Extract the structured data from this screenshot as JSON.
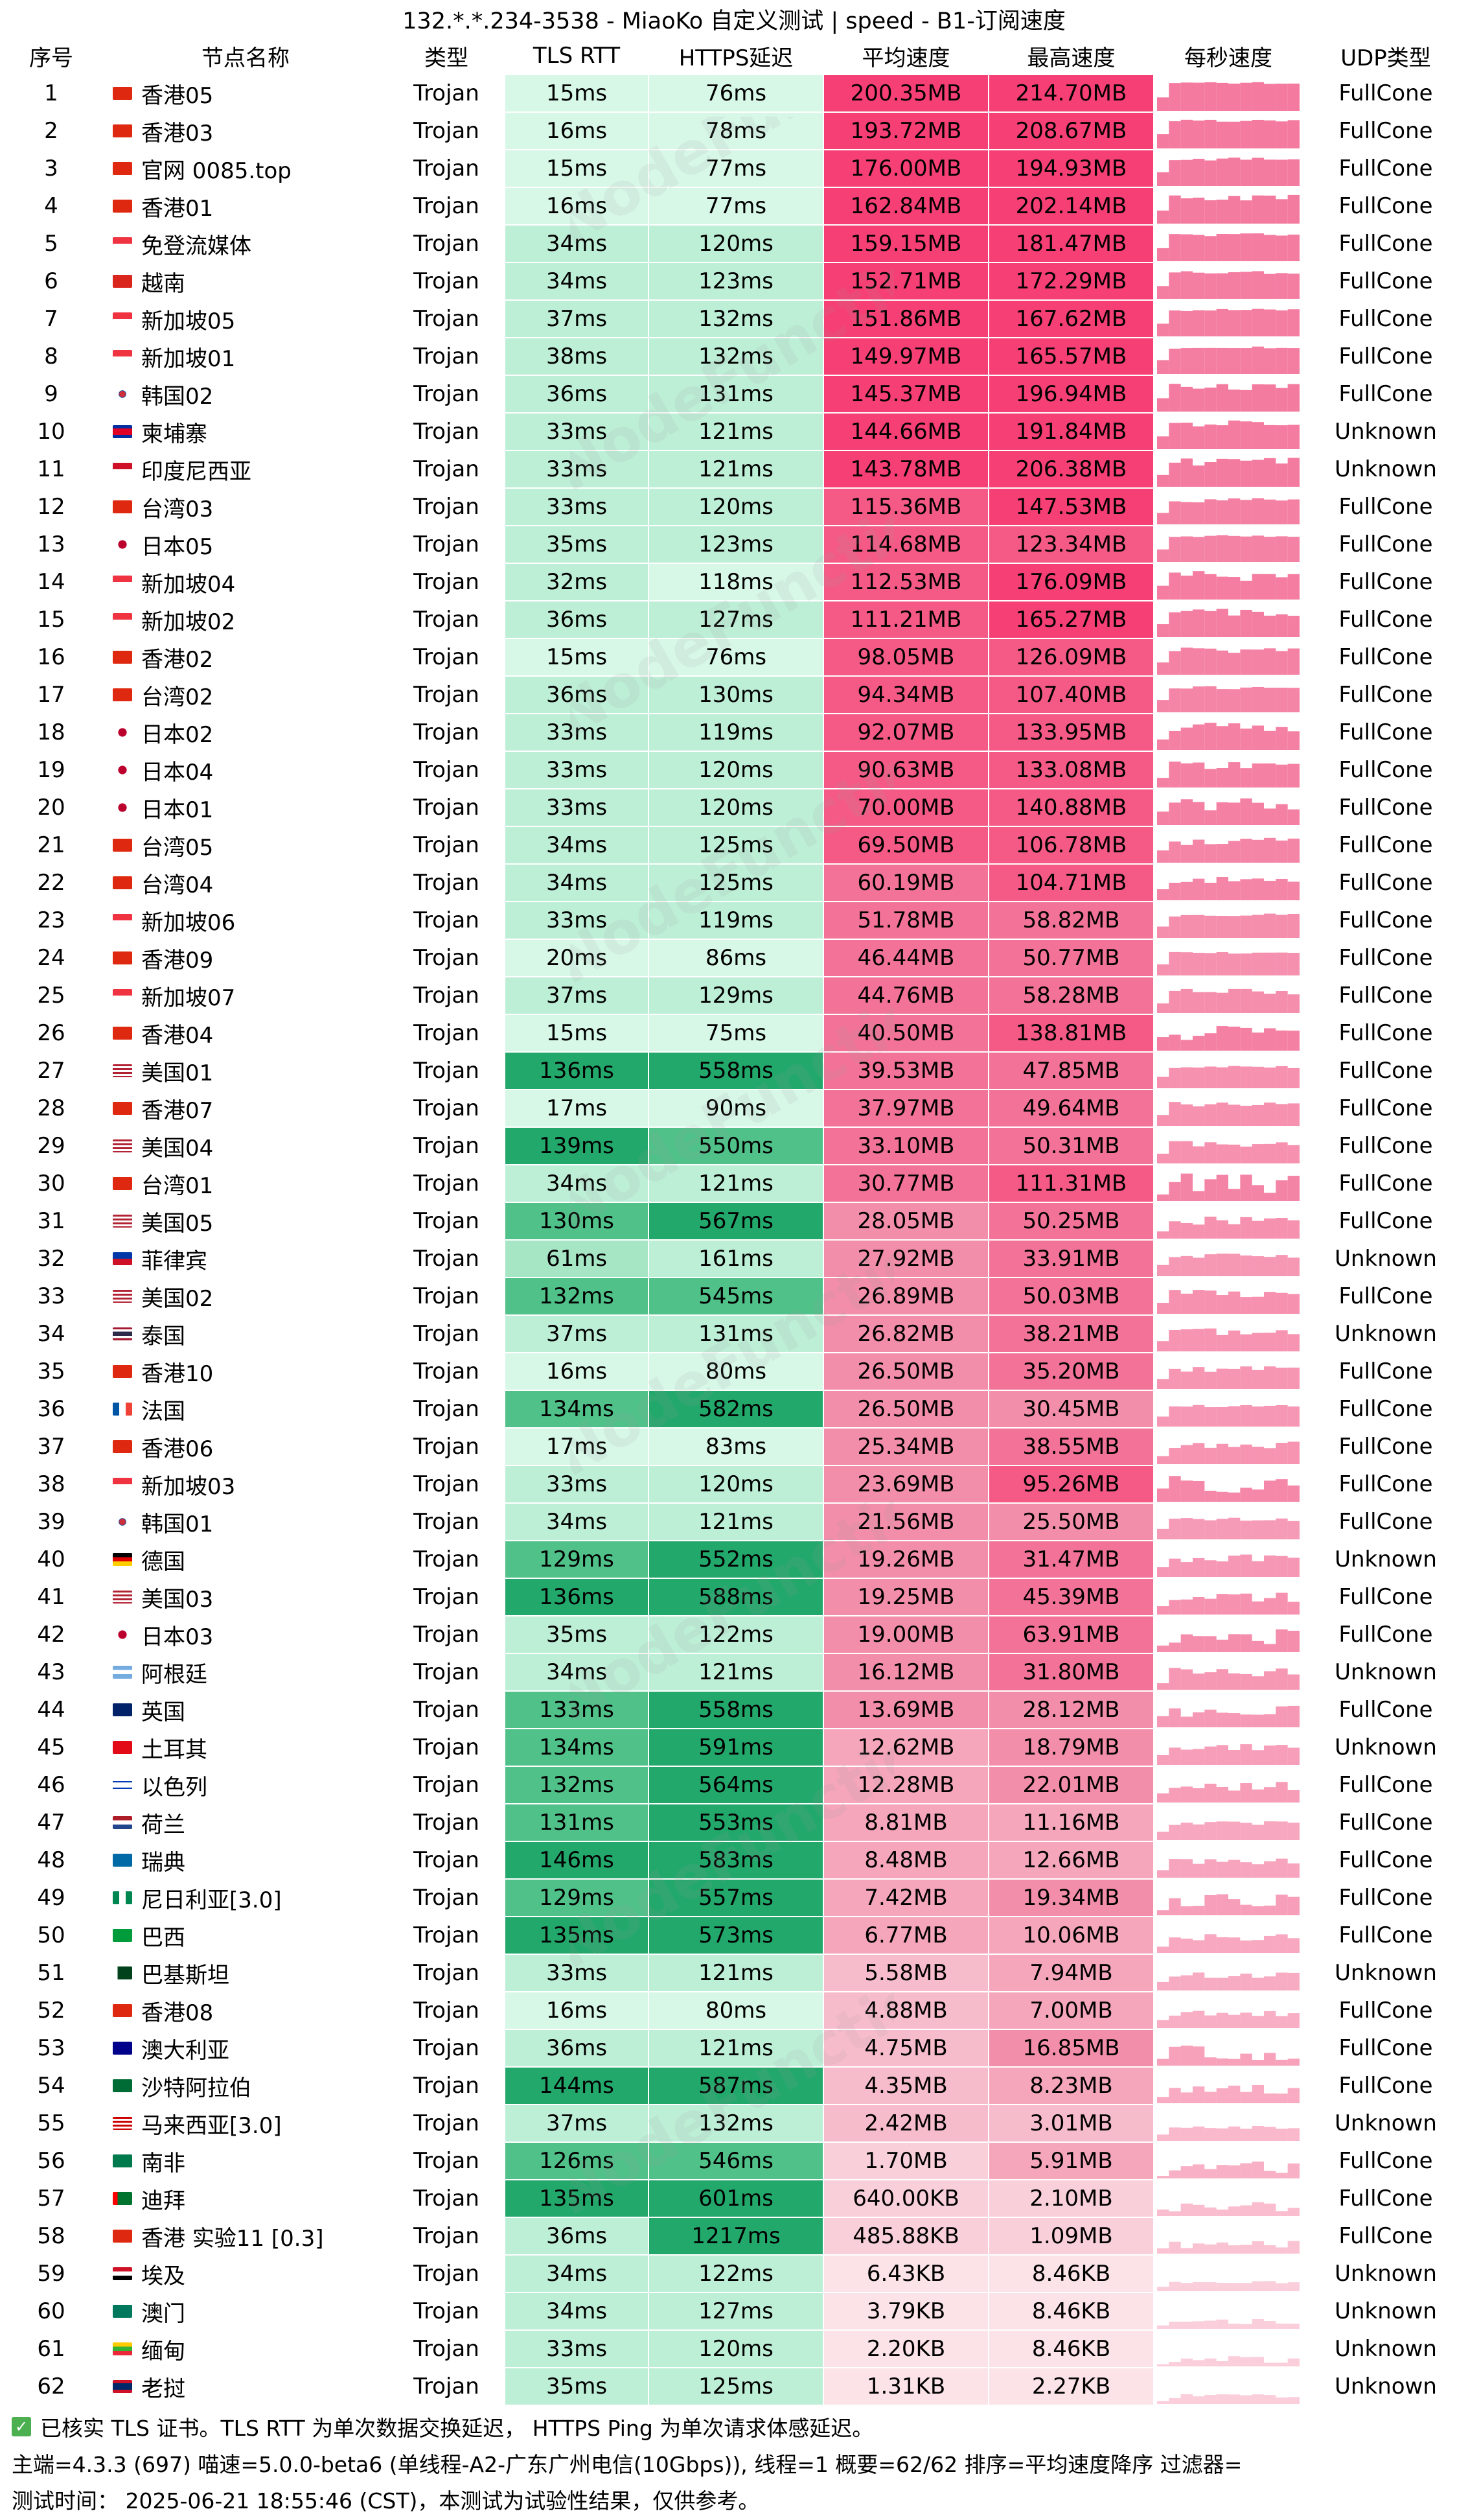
{
  "title": "132.*.*.234-3538 - MiaoKo 自定义测试 | speed - B1-订阅速度",
  "headers": [
    "序号",
    "节点名称",
    "类型",
    "TLS RTT",
    "HTTPS延迟",
    "平均速度",
    "最高速度",
    "每秒速度",
    "UDP类型"
  ],
  "colors": {
    "tls_scale": [
      "#d7f7e7",
      "#bdeed6",
      "#a6e6c5",
      "#8fddb4",
      "#6fd09c",
      "#4fc189",
      "#23a86c"
    ],
    "speed_scale": [
      "#fbe3e8",
      "#f9d0da",
      "#f7bccb",
      "#f5a6bb",
      "#f38eaa",
      "#f27397",
      "#f45a85",
      "#f63f74"
    ],
    "spark": "#f3739a"
  },
  "rows": [
    {
      "idx": "1",
      "name": "香港05",
      "flag": "hk",
      "type": "Trojan",
      "tls": "15ms",
      "https": "76ms",
      "avg": "200.35MB",
      "max": "214.70MB",
      "udp": "FullCone"
    },
    {
      "idx": "2",
      "name": "香港03",
      "flag": "hk",
      "type": "Trojan",
      "tls": "16ms",
      "https": "78ms",
      "avg": "193.72MB",
      "max": "208.67MB",
      "udp": "FullCone"
    },
    {
      "idx": "3",
      "name": "官网 0085.top",
      "flag": "hk",
      "type": "Trojan",
      "tls": "15ms",
      "https": "77ms",
      "avg": "176.00MB",
      "max": "194.93MB",
      "udp": "FullCone"
    },
    {
      "idx": "4",
      "name": "香港01",
      "flag": "hk",
      "type": "Trojan",
      "tls": "16ms",
      "https": "77ms",
      "avg": "162.84MB",
      "max": "202.14MB",
      "udp": "FullCone"
    },
    {
      "idx": "5",
      "name": "免登流媒体",
      "flag": "sg",
      "type": "Trojan",
      "tls": "34ms",
      "https": "120ms",
      "avg": "159.15MB",
      "max": "181.47MB",
      "udp": "FullCone"
    },
    {
      "idx": "6",
      "name": "越南",
      "flag": "vn",
      "type": "Trojan",
      "tls": "34ms",
      "https": "123ms",
      "avg": "152.71MB",
      "max": "172.29MB",
      "udp": "FullCone"
    },
    {
      "idx": "7",
      "name": "新加坡05",
      "flag": "sg",
      "type": "Trojan",
      "tls": "37ms",
      "https": "132ms",
      "avg": "151.86MB",
      "max": "167.62MB",
      "udp": "FullCone"
    },
    {
      "idx": "8",
      "name": "新加坡01",
      "flag": "sg",
      "type": "Trojan",
      "tls": "38ms",
      "https": "132ms",
      "avg": "149.97MB",
      "max": "165.57MB",
      "udp": "FullCone"
    },
    {
      "idx": "9",
      "name": "韩国02",
      "flag": "kr",
      "type": "Trojan",
      "tls": "36ms",
      "https": "131ms",
      "avg": "145.37MB",
      "max": "196.94MB",
      "udp": "FullCone"
    },
    {
      "idx": "10",
      "name": "柬埔寨",
      "flag": "kh",
      "type": "Trojan",
      "tls": "33ms",
      "https": "121ms",
      "avg": "144.66MB",
      "max": "191.84MB",
      "udp": "Unknown"
    },
    {
      "idx": "11",
      "name": "印度尼西亚",
      "flag": "id",
      "type": "Trojan",
      "tls": "33ms",
      "https": "121ms",
      "avg": "143.78MB",
      "max": "206.38MB",
      "udp": "Unknown"
    },
    {
      "idx": "12",
      "name": "台湾03",
      "flag": "tw",
      "type": "Trojan",
      "tls": "33ms",
      "https": "120ms",
      "avg": "115.36MB",
      "max": "147.53MB",
      "udp": "FullCone"
    },
    {
      "idx": "13",
      "name": "日本05",
      "flag": "jp",
      "type": "Trojan",
      "tls": "35ms",
      "https": "123ms",
      "avg": "114.68MB",
      "max": "123.34MB",
      "udp": "FullCone"
    },
    {
      "idx": "14",
      "name": "新加坡04",
      "flag": "sg",
      "type": "Trojan",
      "tls": "32ms",
      "https": "118ms",
      "avg": "112.53MB",
      "max": "176.09MB",
      "udp": "FullCone"
    },
    {
      "idx": "15",
      "name": "新加坡02",
      "flag": "sg",
      "type": "Trojan",
      "tls": "36ms",
      "https": "127ms",
      "avg": "111.21MB",
      "max": "165.27MB",
      "udp": "FullCone"
    },
    {
      "idx": "16",
      "name": "香港02",
      "flag": "hk",
      "type": "Trojan",
      "tls": "15ms",
      "https": "76ms",
      "avg": "98.05MB",
      "max": "126.09MB",
      "udp": "FullCone"
    },
    {
      "idx": "17",
      "name": "台湾02",
      "flag": "tw",
      "type": "Trojan",
      "tls": "36ms",
      "https": "130ms",
      "avg": "94.34MB",
      "max": "107.40MB",
      "udp": "FullCone"
    },
    {
      "idx": "18",
      "name": "日本02",
      "flag": "jp",
      "type": "Trojan",
      "tls": "33ms",
      "https": "119ms",
      "avg": "92.07MB",
      "max": "133.95MB",
      "udp": "FullCone"
    },
    {
      "idx": "19",
      "name": "日本04",
      "flag": "jp",
      "type": "Trojan",
      "tls": "33ms",
      "https": "120ms",
      "avg": "90.63MB",
      "max": "133.08MB",
      "udp": "FullCone"
    },
    {
      "idx": "20",
      "name": "日本01",
      "flag": "jp",
      "type": "Trojan",
      "tls": "33ms",
      "https": "120ms",
      "avg": "70.00MB",
      "max": "140.88MB",
      "udp": "FullCone"
    },
    {
      "idx": "21",
      "name": "台湾05",
      "flag": "tw",
      "type": "Trojan",
      "tls": "34ms",
      "https": "125ms",
      "avg": "69.50MB",
      "max": "106.78MB",
      "udp": "FullCone"
    },
    {
      "idx": "22",
      "name": "台湾04",
      "flag": "tw",
      "type": "Trojan",
      "tls": "34ms",
      "https": "125ms",
      "avg": "60.19MB",
      "max": "104.71MB",
      "udp": "FullCone"
    },
    {
      "idx": "23",
      "name": "新加坡06",
      "flag": "sg",
      "type": "Trojan",
      "tls": "33ms",
      "https": "119ms",
      "avg": "51.78MB",
      "max": "58.82MB",
      "udp": "FullCone"
    },
    {
      "idx": "24",
      "name": "香港09",
      "flag": "hk",
      "type": "Trojan",
      "tls": "20ms",
      "https": "86ms",
      "avg": "46.44MB",
      "max": "50.77MB",
      "udp": "FullCone"
    },
    {
      "idx": "25",
      "name": "新加坡07",
      "flag": "sg",
      "type": "Trojan",
      "tls": "37ms",
      "https": "129ms",
      "avg": "44.76MB",
      "max": "58.28MB",
      "udp": "FullCone"
    },
    {
      "idx": "26",
      "name": "香港04",
      "flag": "hk",
      "type": "Trojan",
      "tls": "15ms",
      "https": "75ms",
      "avg": "40.50MB",
      "max": "138.81MB",
      "udp": "FullCone"
    },
    {
      "idx": "27",
      "name": "美国01",
      "flag": "us",
      "type": "Trojan",
      "tls": "136ms",
      "https": "558ms",
      "avg": "39.53MB",
      "max": "47.85MB",
      "udp": "FullCone"
    },
    {
      "idx": "28",
      "name": "香港07",
      "flag": "hk",
      "type": "Trojan",
      "tls": "17ms",
      "https": "90ms",
      "avg": "37.97MB",
      "max": "49.64MB",
      "udp": "FullCone"
    },
    {
      "idx": "29",
      "name": "美国04",
      "flag": "us",
      "type": "Trojan",
      "tls": "139ms",
      "https": "550ms",
      "avg": "33.10MB",
      "max": "50.31MB",
      "udp": "FullCone"
    },
    {
      "idx": "30",
      "name": "台湾01",
      "flag": "tw",
      "type": "Trojan",
      "tls": "34ms",
      "https": "121ms",
      "avg": "30.77MB",
      "max": "111.31MB",
      "udp": "FullCone"
    },
    {
      "idx": "31",
      "name": "美国05",
      "flag": "us",
      "type": "Trojan",
      "tls": "130ms",
      "https": "567ms",
      "avg": "28.05MB",
      "max": "50.25MB",
      "udp": "FullCone"
    },
    {
      "idx": "32",
      "name": "菲律宾",
      "flag": "ph",
      "type": "Trojan",
      "tls": "61ms",
      "https": "161ms",
      "avg": "27.92MB",
      "max": "33.91MB",
      "udp": "Unknown"
    },
    {
      "idx": "33",
      "name": "美国02",
      "flag": "us",
      "type": "Trojan",
      "tls": "132ms",
      "https": "545ms",
      "avg": "26.89MB",
      "max": "50.03MB",
      "udp": "FullCone"
    },
    {
      "idx": "34",
      "name": "泰国",
      "flag": "th",
      "type": "Trojan",
      "tls": "37ms",
      "https": "131ms",
      "avg": "26.82MB",
      "max": "38.21MB",
      "udp": "Unknown"
    },
    {
      "idx": "35",
      "name": "香港10",
      "flag": "hk",
      "type": "Trojan",
      "tls": "16ms",
      "https": "80ms",
      "avg": "26.50MB",
      "max": "35.20MB",
      "udp": "FullCone"
    },
    {
      "idx": "36",
      "name": "法国",
      "flag": "fr",
      "type": "Trojan",
      "tls": "134ms",
      "https": "582ms",
      "avg": "26.50MB",
      "max": "30.45MB",
      "udp": "FullCone"
    },
    {
      "idx": "37",
      "name": "香港06",
      "flag": "hk",
      "type": "Trojan",
      "tls": "17ms",
      "https": "83ms",
      "avg": "25.34MB",
      "max": "38.55MB",
      "udp": "FullCone"
    },
    {
      "idx": "38",
      "name": "新加坡03",
      "flag": "sg",
      "type": "Trojan",
      "tls": "33ms",
      "https": "120ms",
      "avg": "23.69MB",
      "max": "95.26MB",
      "udp": "FullCone"
    },
    {
      "idx": "39",
      "name": "韩国01",
      "flag": "kr",
      "type": "Trojan",
      "tls": "34ms",
      "https": "121ms",
      "avg": "21.56MB",
      "max": "25.50MB",
      "udp": "FullCone"
    },
    {
      "idx": "40",
      "name": "德国",
      "flag": "de",
      "type": "Trojan",
      "tls": "129ms",
      "https": "552ms",
      "avg": "19.26MB",
      "max": "31.47MB",
      "udp": "Unknown"
    },
    {
      "idx": "41",
      "name": "美国03",
      "flag": "us",
      "type": "Trojan",
      "tls": "136ms",
      "https": "588ms",
      "avg": "19.25MB",
      "max": "45.39MB",
      "udp": "FullCone"
    },
    {
      "idx": "42",
      "name": "日本03",
      "flag": "jp",
      "type": "Trojan",
      "tls": "35ms",
      "https": "122ms",
      "avg": "19.00MB",
      "max": "63.91MB",
      "udp": "FullCone"
    },
    {
      "idx": "43",
      "name": "阿根廷",
      "flag": "ar",
      "type": "Trojan",
      "tls": "34ms",
      "https": "121ms",
      "avg": "16.12MB",
      "max": "31.80MB",
      "udp": "Unknown"
    },
    {
      "idx": "44",
      "name": "英国",
      "flag": "gb",
      "type": "Trojan",
      "tls": "133ms",
      "https": "558ms",
      "avg": "13.69MB",
      "max": "28.12MB",
      "udp": "FullCone"
    },
    {
      "idx": "45",
      "name": "土耳其",
      "flag": "tr",
      "type": "Trojan",
      "tls": "134ms",
      "https": "591ms",
      "avg": "12.62MB",
      "max": "18.79MB",
      "udp": "Unknown"
    },
    {
      "idx": "46",
      "name": "以色列",
      "flag": "il",
      "type": "Trojan",
      "tls": "132ms",
      "https": "564ms",
      "avg": "12.28MB",
      "max": "22.01MB",
      "udp": "FullCone"
    },
    {
      "idx": "47",
      "name": "荷兰",
      "flag": "nl",
      "type": "Trojan",
      "tls": "131ms",
      "https": "553ms",
      "avg": "8.81MB",
      "max": "11.16MB",
      "udp": "FullCone"
    },
    {
      "idx": "48",
      "name": "瑞典",
      "flag": "se",
      "type": "Trojan",
      "tls": "146ms",
      "https": "583ms",
      "avg": "8.48MB",
      "max": "12.66MB",
      "udp": "FullCone"
    },
    {
      "idx": "49",
      "name": "尼日利亚[3.0]",
      "flag": "ng",
      "type": "Trojan",
      "tls": "129ms",
      "https": "557ms",
      "avg": "7.42MB",
      "max": "19.34MB",
      "udp": "FullCone"
    },
    {
      "idx": "50",
      "name": "巴西",
      "flag": "br",
      "type": "Trojan",
      "tls": "135ms",
      "https": "573ms",
      "avg": "6.77MB",
      "max": "10.06MB",
      "udp": "FullCone"
    },
    {
      "idx": "51",
      "name": "巴基斯坦",
      "flag": "pk",
      "type": "Trojan",
      "tls": "33ms",
      "https": "121ms",
      "avg": "5.58MB",
      "max": "7.94MB",
      "udp": "Unknown"
    },
    {
      "idx": "52",
      "name": "香港08",
      "flag": "hk",
      "type": "Trojan",
      "tls": "16ms",
      "https": "80ms",
      "avg": "4.88MB",
      "max": "7.00MB",
      "udp": "FullCone"
    },
    {
      "idx": "53",
      "name": "澳大利亚",
      "flag": "au",
      "type": "Trojan",
      "tls": "36ms",
      "https": "121ms",
      "avg": "4.75MB",
      "max": "16.85MB",
      "udp": "FullCone"
    },
    {
      "idx": "54",
      "name": "沙特阿拉伯",
      "flag": "sa",
      "type": "Trojan",
      "tls": "144ms",
      "https": "587ms",
      "avg": "4.35MB",
      "max": "8.23MB",
      "udp": "FullCone"
    },
    {
      "idx": "55",
      "name": "马来西亚[3.0]",
      "flag": "my",
      "type": "Trojan",
      "tls": "37ms",
      "https": "132ms",
      "avg": "2.42MB",
      "max": "3.01MB",
      "udp": "Unknown"
    },
    {
      "idx": "56",
      "name": "南非",
      "flag": "za",
      "type": "Trojan",
      "tls": "126ms",
      "https": "546ms",
      "avg": "1.70MB",
      "max": "5.91MB",
      "udp": "FullCone"
    },
    {
      "idx": "57",
      "name": "迪拜",
      "flag": "ae",
      "type": "Trojan",
      "tls": "135ms",
      "https": "601ms",
      "avg": "640.00KB",
      "max": "2.10MB",
      "udp": "FullCone"
    },
    {
      "idx": "58",
      "name": "香港 实验11 [0.3]",
      "flag": "hk",
      "type": "Trojan",
      "tls": "36ms",
      "https": "1217ms",
      "avg": "485.88KB",
      "max": "1.09MB",
      "udp": "FullCone"
    },
    {
      "idx": "59",
      "name": "埃及",
      "flag": "eg",
      "type": "Trojan",
      "tls": "34ms",
      "https": "122ms",
      "avg": "6.43KB",
      "max": "8.46KB",
      "udp": "Unknown"
    },
    {
      "idx": "60",
      "name": "澳门",
      "flag": "mo",
      "type": "Trojan",
      "tls": "34ms",
      "https": "127ms",
      "avg": "3.79KB",
      "max": "8.46KB",
      "udp": "Unknown"
    },
    {
      "idx": "61",
      "name": "缅甸",
      "flag": "mm",
      "type": "Trojan",
      "tls": "33ms",
      "https": "120ms",
      "avg": "2.20KB",
      "max": "8.46KB",
      "udp": "Unknown"
    },
    {
      "idx": "62",
      "name": "老挝",
      "flag": "la",
      "type": "Trojan",
      "tls": "35ms",
      "https": "125ms",
      "avg": "1.31KB",
      "max": "2.27KB",
      "udp": "Unknown"
    }
  ],
  "footer": {
    "line1": "已核实 TLS 证书。TLS RTT 为单次数据交换延迟， HTTPS Ping 为单次请求体感延迟。",
    "line2": "主端=4.3.3 (697) 喵速=5.0.0-beta6 (单线程-A2-广东广州电信(10Gbps)), 线程=1 概要=62/62 排序=平均速度降序 过滤器=",
    "line3": "测试时间： 2025-06-21 18:55:46 (CST)，本测试为试验性结果，仅供参考。"
  },
  "watermark": "NodeFunction"
}
